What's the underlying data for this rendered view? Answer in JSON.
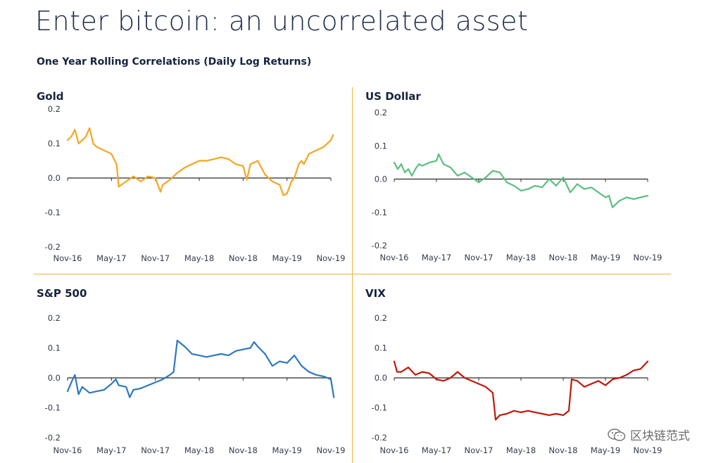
{
  "header": {
    "title": "Enter bitcoin: an uncorrelated asset",
    "subtitle": "One Year Rolling Correlations (Daily Log Returns)"
  },
  "watermark": {
    "icon": "wechat-icon",
    "text": "区块链范式"
  },
  "chart_data": [
    {
      "type": "line",
      "title": "Gold",
      "color": "#f5a623",
      "yticks": [
        "0.2",
        "0.1",
        "0.0",
        "-0.1",
        "-0.2"
      ],
      "ylim": [
        -0.2,
        0.2
      ],
      "x_tick_labels": [
        "Nov-16",
        "May-17",
        "Nov-17",
        "May-18",
        "Nov-18",
        "May-19",
        "Nov-19"
      ],
      "x_tick_positions": [
        0,
        6,
        12,
        18,
        24,
        30,
        36
      ],
      "x": [
        0,
        0.5,
        1,
        1.5,
        2,
        2.5,
        3,
        3.5,
        4,
        5,
        6,
        6.7,
        7,
        8,
        9,
        10,
        11,
        12,
        12.7,
        13,
        14,
        15,
        16,
        17,
        18,
        19,
        20,
        21,
        22,
        23,
        24,
        24.5,
        25,
        26,
        27,
        28,
        29,
        29.5,
        30,
        30.6,
        31,
        31.6,
        32,
        32.3,
        33,
        34,
        35,
        36,
        36.3
      ],
      "values": [
        0.11,
        0.12,
        0.14,
        0.1,
        0.11,
        0.12,
        0.145,
        0.1,
        0.09,
        0.08,
        0.07,
        0.04,
        -0.025,
        -0.01,
        0.005,
        -0.01,
        0.005,
        0.0,
        -0.04,
        -0.02,
        -0.005,
        0.015,
        0.03,
        0.04,
        0.05,
        0.05,
        0.055,
        0.06,
        0.055,
        0.04,
        0.035,
        -0.005,
        0.04,
        0.05,
        0.01,
        -0.01,
        -0.02,
        -0.05,
        -0.045,
        -0.01,
        0.0,
        0.04,
        0.05,
        0.04,
        0.07,
        0.08,
        0.09,
        0.11,
        0.125
      ]
    },
    {
      "type": "line",
      "title": "US Dollar",
      "color": "#5cbf7e",
      "yticks": [
        "0.2",
        "0.1",
        "0.0",
        "-0.1",
        "-0.2"
      ],
      "ylim": [
        -0.2,
        0.2
      ],
      "x_tick_labels": [
        "Nov-16",
        "May-17",
        "Nov-17",
        "May-18",
        "Nov-18",
        "May-19",
        "Nov-19"
      ],
      "x_tick_positions": [
        0,
        6,
        12,
        18,
        24,
        30,
        36
      ],
      "x": [
        0,
        0.5,
        1,
        1.5,
        2,
        2.5,
        3,
        3.5,
        4,
        5,
        6,
        6.3,
        7,
        8,
        9,
        10,
        11,
        12,
        13,
        14,
        15,
        16,
        17,
        18,
        19,
        20,
        21,
        22,
        23,
        24,
        25,
        26,
        27,
        28,
        29,
        30,
        30.5,
        31,
        32,
        33,
        34,
        35,
        36
      ],
      "values": [
        0.05,
        0.03,
        0.045,
        0.02,
        0.03,
        0.01,
        0.03,
        0.045,
        0.04,
        0.05,
        0.055,
        0.075,
        0.045,
        0.035,
        0.01,
        0.02,
        0.005,
        -0.01,
        0.005,
        0.025,
        0.02,
        -0.01,
        -0.02,
        -0.035,
        -0.03,
        -0.02,
        -0.025,
        0.0,
        -0.02,
        0.005,
        -0.04,
        -0.015,
        -0.03,
        -0.025,
        -0.04,
        -0.055,
        -0.05,
        -0.085,
        -0.065,
        -0.055,
        -0.06,
        -0.055,
        -0.05
      ]
    },
    {
      "type": "line",
      "title": "S&P 500",
      "color": "#2e78c2",
      "yticks": [
        "0.2",
        "0.1",
        "0.0",
        "-0.1",
        "-0.2"
      ],
      "ylim": [
        -0.2,
        0.2
      ],
      "x_tick_labels": [
        "Nov-16",
        "May-17",
        "Nov-17",
        "May-18",
        "Nov-18",
        "May-19",
        "Nov-19"
      ],
      "x_tick_positions": [
        0,
        6,
        12,
        18,
        24,
        30,
        36
      ],
      "x": [
        0,
        0.6,
        1,
        1.5,
        2,
        3,
        4,
        5,
        6,
        6.6,
        7,
        8,
        8.5,
        9,
        10,
        11,
        12,
        13,
        14,
        14.5,
        15,
        16,
        17,
        18,
        19,
        20,
        21,
        22,
        23,
        24,
        25,
        25.5,
        26,
        27,
        28,
        29,
        30,
        31,
        32,
        33,
        34,
        35,
        36,
        36.4
      ],
      "values": [
        -0.045,
        -0.01,
        0.01,
        -0.055,
        -0.03,
        -0.05,
        -0.045,
        -0.04,
        -0.02,
        -0.005,
        -0.025,
        -0.03,
        -0.065,
        -0.04,
        -0.035,
        -0.025,
        -0.015,
        -0.005,
        0.01,
        0.02,
        0.125,
        0.105,
        0.08,
        0.075,
        0.07,
        0.075,
        0.08,
        0.075,
        0.09,
        0.095,
        0.1,
        0.12,
        0.105,
        0.08,
        0.04,
        0.055,
        0.05,
        0.075,
        0.04,
        0.02,
        0.01,
        0.005,
        -0.005,
        -0.065
      ]
    },
    {
      "type": "line",
      "title": "VIX",
      "color": "#c0180c",
      "yticks": [
        "0.2",
        "0.1",
        "0.0",
        "-0.1",
        "-0.2"
      ],
      "ylim": [
        -0.2,
        0.2
      ],
      "x_tick_labels": [
        "Nov-16",
        "May-17",
        "Nov-17",
        "May-18",
        "Nov-18",
        "May-19",
        "Nov-19"
      ],
      "x_tick_positions": [
        0,
        6,
        12,
        18,
        24,
        30,
        36
      ],
      "x": [
        0,
        0.4,
        1,
        2,
        3,
        4,
        5,
        6,
        7,
        8,
        9,
        10,
        11,
        12,
        13,
        14,
        14.4,
        15,
        16,
        17,
        18,
        19,
        20,
        21,
        22,
        23,
        24,
        24.8,
        25.2,
        26,
        27,
        28,
        29,
        30,
        31,
        32,
        33,
        34,
        35,
        36
      ],
      "values": [
        0.055,
        0.02,
        0.02,
        0.035,
        0.01,
        0.02,
        0.015,
        -0.005,
        -0.01,
        0.0,
        0.02,
        0.0,
        -0.01,
        -0.02,
        -0.03,
        -0.05,
        -0.14,
        -0.125,
        -0.12,
        -0.11,
        -0.115,
        -0.11,
        -0.115,
        -0.12,
        -0.125,
        -0.12,
        -0.125,
        -0.11,
        -0.005,
        -0.01,
        -0.03,
        -0.02,
        -0.01,
        -0.025,
        -0.005,
        0.0,
        0.01,
        0.025,
        0.03,
        0.055
      ]
    }
  ]
}
